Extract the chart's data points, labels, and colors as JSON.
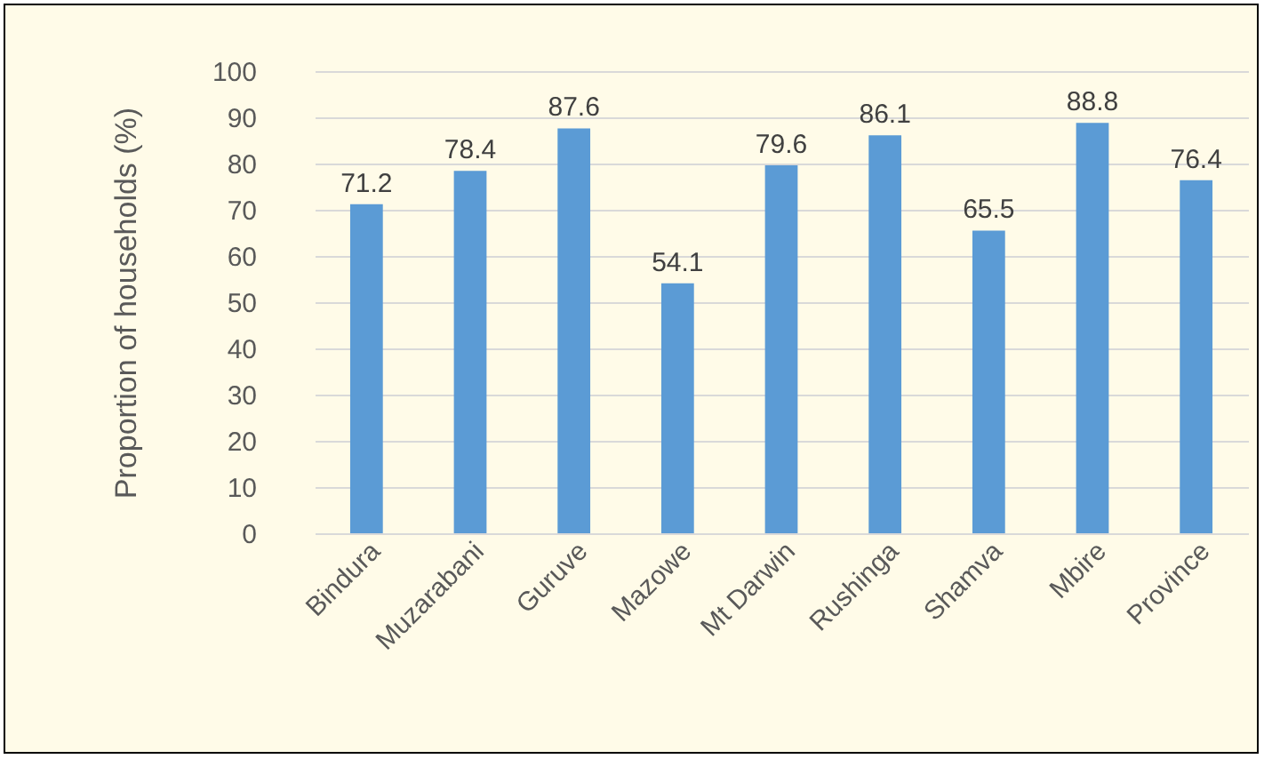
{
  "chart_data": {
    "type": "bar",
    "ylabel": "Proportion of households (%)",
    "categories": [
      "Bindura",
      "Muzarabani",
      "Guruve",
      "Mazowe",
      "Mt Darwin",
      "Rushinga",
      "Shamva",
      "Mbire",
      "Province"
    ],
    "values": [
      71.2,
      78.4,
      87.6,
      54.1,
      79.6,
      86.1,
      65.5,
      88.8,
      76.4
    ],
    "color": "#5b9bd5",
    "ylim": [
      0,
      100
    ],
    "yticks": [
      0,
      10,
      20,
      30,
      40,
      50,
      60,
      70,
      80,
      90,
      100
    ],
    "grid": "y",
    "data_labels": true
  }
}
